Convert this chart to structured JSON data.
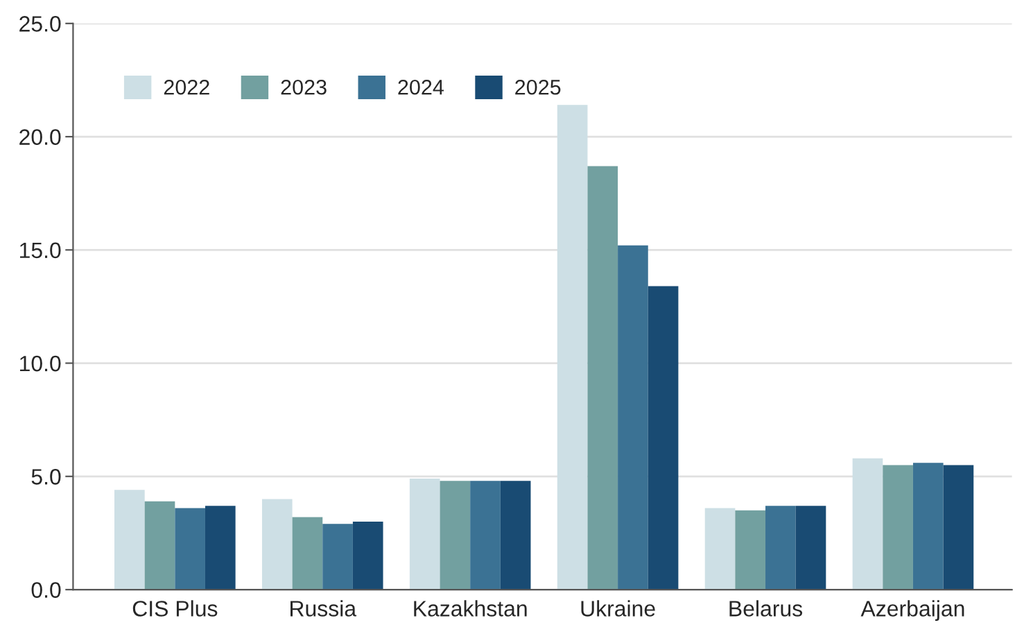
{
  "chart_data": {
    "type": "bar",
    "categories": [
      "CIS Plus",
      "Russia",
      "Kazakhstan",
      "Ukraine",
      "Belarus",
      "Azerbaijan"
    ],
    "series": [
      {
        "name": "2022",
        "color": "#cddfe5",
        "values": [
          4.4,
          4.0,
          4.9,
          21.4,
          3.6,
          5.8
        ]
      },
      {
        "name": "2023",
        "color": "#72a0a0",
        "values": [
          3.9,
          3.2,
          4.8,
          18.7,
          3.5,
          5.5
        ]
      },
      {
        "name": "2024",
        "color": "#3b7294",
        "values": [
          3.6,
          2.9,
          4.8,
          15.2,
          3.7,
          5.6
        ]
      },
      {
        "name": "2025",
        "color": "#194b73",
        "values": [
          3.7,
          3.0,
          4.8,
          13.4,
          3.7,
          5.5
        ]
      }
    ],
    "ylim": [
      0,
      25
    ],
    "yticks": [
      {
        "value": 0,
        "label": "0.0"
      },
      {
        "value": 5,
        "label": "5.0"
      },
      {
        "value": 10,
        "label": "10.0"
      },
      {
        "value": 15,
        "label": "15.0"
      },
      {
        "value": 20,
        "label": "20.0"
      },
      {
        "value": 25,
        "label": "25.0"
      }
    ],
    "grid": "y",
    "legend": "top left"
  }
}
